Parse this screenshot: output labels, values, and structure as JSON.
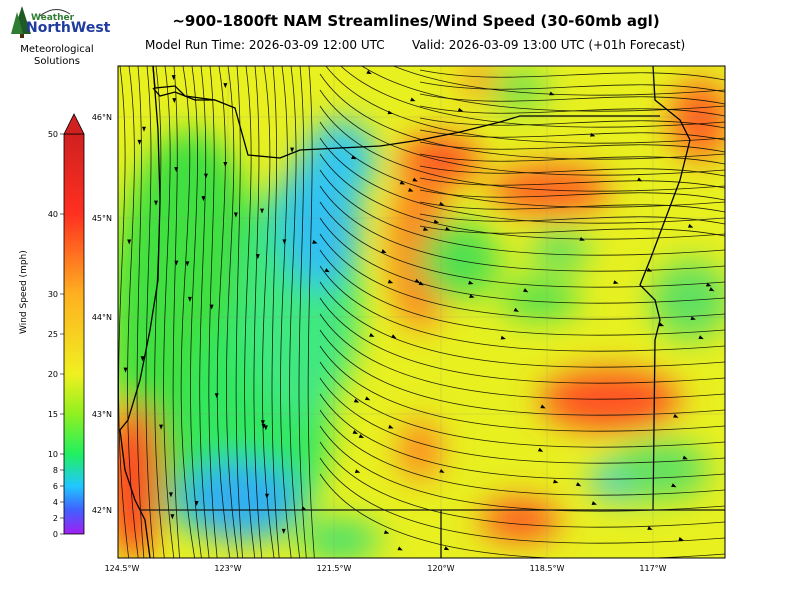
{
  "header": {
    "title": "~900-1800ft NAM Streamlines/Wind Speed (30-60mb agl)",
    "model_run": "Model Run Time: 2026-03-09 12:00 UTC",
    "valid": "Valid: 2026-03-09 13:00 UTC  (+01h Forecast)"
  },
  "logo": {
    "brand_top": "Weather",
    "brand_main": "NorthWest",
    "subtitle_line1": "Meteorological",
    "subtitle_line2": "Solutions"
  },
  "colorbar": {
    "label": "Wind Speed (mph)",
    "ticks": [
      "0",
      "2",
      "4",
      "6",
      "8",
      "10",
      "15",
      "20",
      "25",
      "30",
      "40",
      "50"
    ]
  },
  "map": {
    "lon_labels": [
      "124.5°W",
      "123°W",
      "121.5°W",
      "120°W",
      "118.5°W",
      "117°W"
    ],
    "lat_labels": [
      "46°N",
      "45°N",
      "44°N",
      "43°N",
      "42°N"
    ]
  }
}
